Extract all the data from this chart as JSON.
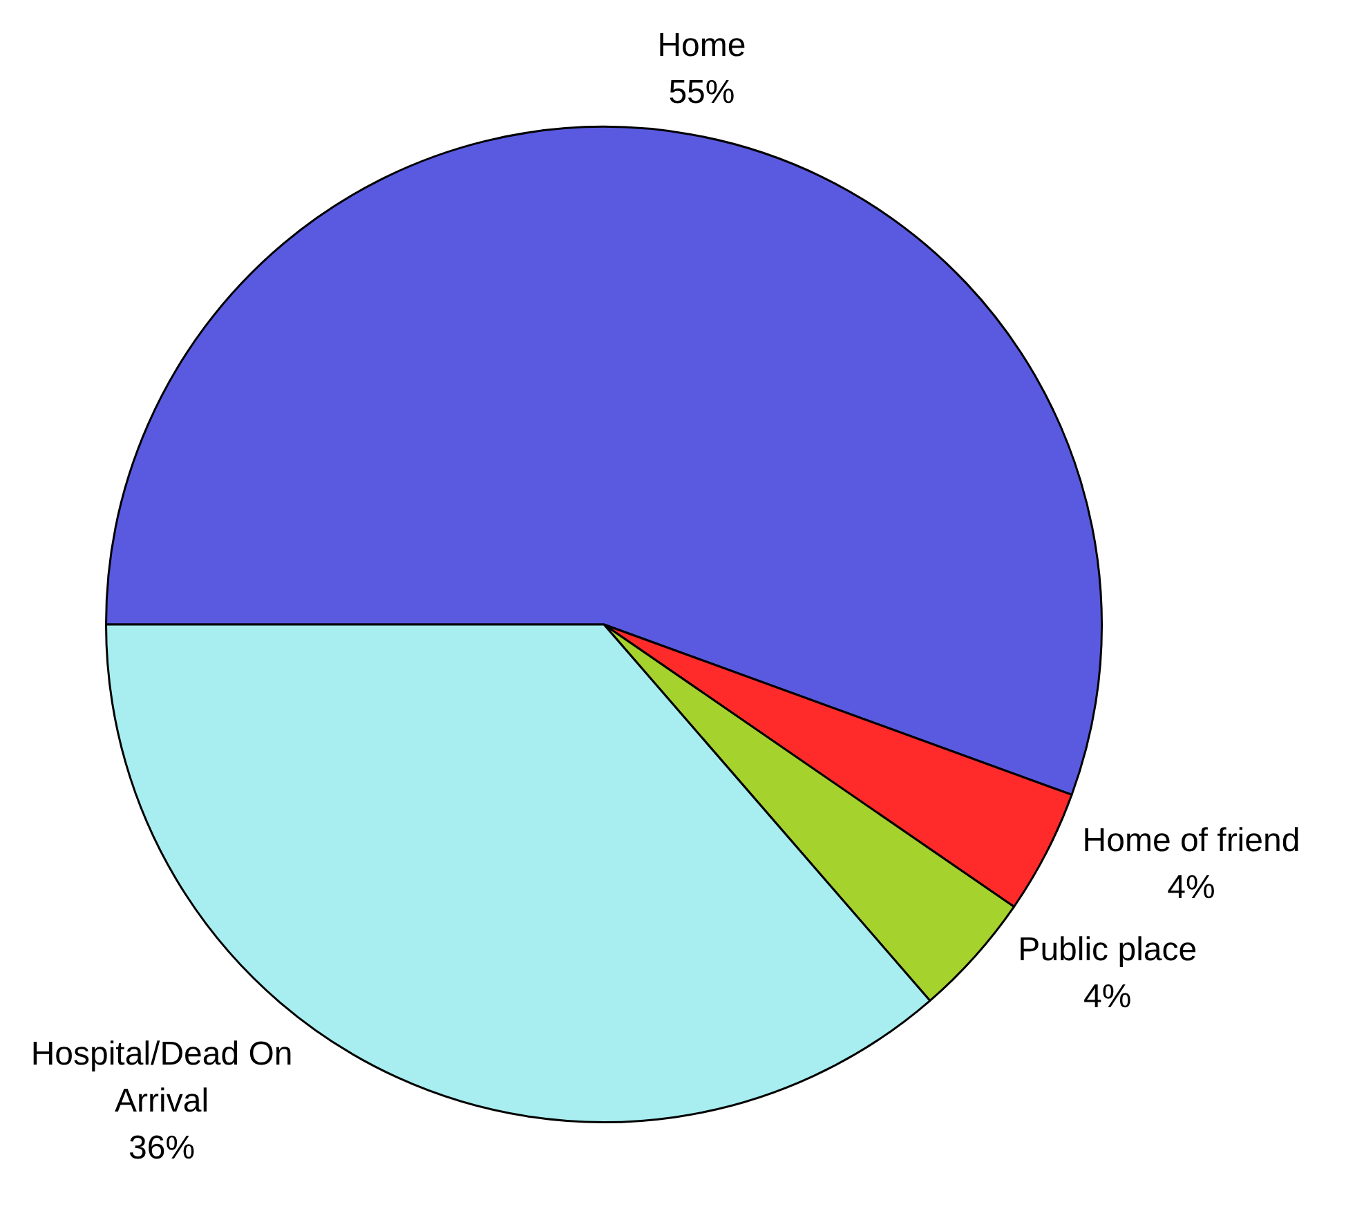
{
  "chart_data": {
    "type": "pie",
    "categories": [
      "Home",
      "Home of friend",
      "Public place",
      "Hospital/Dead On Arrival"
    ],
    "values": [
      55,
      4,
      4,
      36
    ],
    "value_labels": [
      "55%",
      "4%",
      "4%",
      "36%"
    ],
    "colors": [
      "#5a5ae0",
      "#ff2a2a",
      "#a6d22e",
      "#a8eef0"
    ],
    "legend": false
  }
}
